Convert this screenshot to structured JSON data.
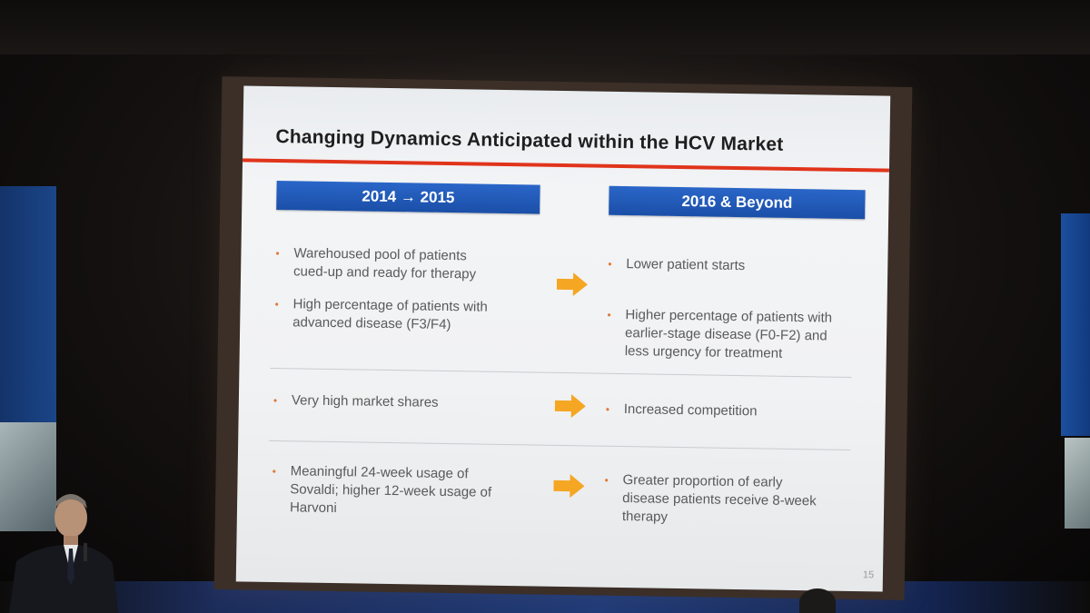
{
  "slide": {
    "title": "Changing Dynamics Anticipated within the HCV Market",
    "left_header": "2014 → 2015",
    "right_header": "2016 & Beyond",
    "page_number": "15",
    "rows": [
      {
        "left": [
          [
            "Warehoused pool of patients",
            "cued-up and ready for therapy"
          ],
          [
            "High percentage of patients with",
            "advanced disease (F3/F4)"
          ]
        ],
        "right": [
          [
            "Lower patient starts"
          ],
          [
            "Higher percentage of patients with",
            "earlier-stage disease (F0-F2) and",
            "less urgency for treatment"
          ]
        ]
      },
      {
        "left": [
          [
            "Very high market shares"
          ]
        ],
        "right": [
          [
            "Increased competition"
          ]
        ]
      },
      {
        "left": [
          [
            "Meaningful 24-week usage of",
            "Sovaldi; higher 12-week usage of",
            "Harvoni"
          ]
        ],
        "right": [
          [
            "Greater proportion of early",
            "disease patients receive 8-week",
            "therapy"
          ]
        ]
      }
    ]
  },
  "colors": {
    "header_blue": "#1b4fa8",
    "title_rule_red": "#e0341b",
    "arrow_orange": "#f5a623",
    "bullet_text": "#5a5a5a"
  },
  "icons": {
    "arrow": "arrow-right-icon",
    "bullet": "bullet-dot-icon"
  }
}
